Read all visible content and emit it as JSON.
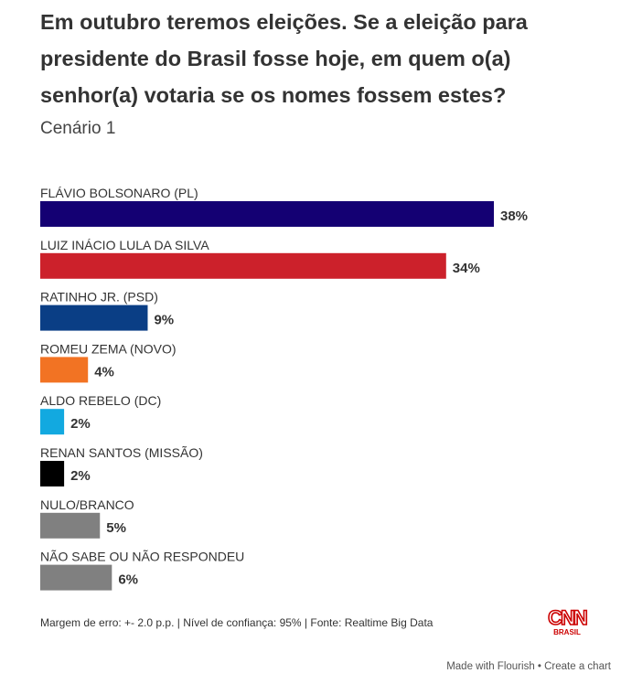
{
  "chart_data": {
    "type": "bar",
    "orientation": "horizontal",
    "title": "Em outubro teremos eleições. Se a eleição para presidente do Brasil fosse hoje, em quem o(a) senhor(a) votaria se os nomes fossem estes?",
    "subtitle": "Cenário 1",
    "categories": [
      "FLÁVIO BOLSONARO (PL)",
      "LUIZ INÁCIO LULA DA SILVA",
      "RATINHO JR. (PSD)",
      "ROMEU ZEMA (NOVO)",
      "ALDO REBELO (DC)",
      "RENAN SANTOS (MISSÃO)",
      "NULO/BRANCO",
      "NÃO SABE OU NÃO RESPONDEU"
    ],
    "values": [
      38,
      34,
      9,
      4,
      2,
      2,
      5,
      6
    ],
    "value_labels": [
      "38%",
      "34%",
      "9%",
      "4%",
      "2%",
      "2%",
      "5%",
      "6%"
    ],
    "colors": [
      "#140073",
      "#cc212b",
      "#0a3e85",
      "#f27323",
      "#12a9e0",
      "#000000",
      "#808080",
      "#808080"
    ],
    "xlim": [
      0,
      38
    ],
    "unit": "%",
    "xlabel": "",
    "ylabel": ""
  },
  "footer": {
    "note": "Margem de erro: +- 2.0 p.p. | Nível de confiança: 95% | Fonte: Realtime Big Data",
    "logo_text": "CNN BRASIL",
    "made_with": "Made with Flourish • Create a chart"
  }
}
